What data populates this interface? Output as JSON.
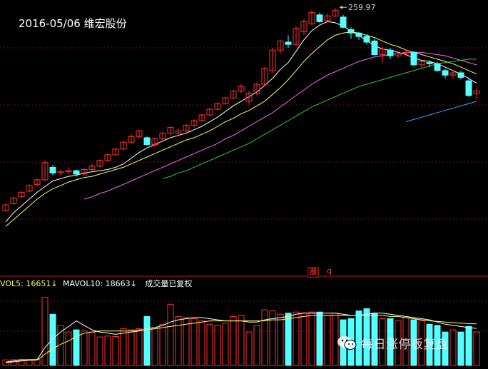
{
  "header": {
    "title": "2016-05/06 维宏股份"
  },
  "colors": {
    "up": "#ff3030",
    "down": "#54ffff",
    "grid": "#7a1010",
    "ma5": "#ffffff",
    "ma10": "#ffff66",
    "ma20": "#ff66ff",
    "ma30": "#33cc33",
    "ma60": "#33aaff"
  },
  "chart_data": {
    "type": "candlestick",
    "title": "2016-05/06 维宏股份",
    "max_price_label": "259.97",
    "price_range": [
      60,
      262
    ],
    "candles": [
      [
        82,
        88,
        81,
        87
      ],
      [
        88,
        94,
        87,
        93
      ],
      [
        94,
        99,
        93,
        98
      ],
      [
        99,
        105,
        98,
        104
      ],
      [
        105,
        110,
        103,
        109
      ],
      [
        109,
        126,
        108,
        124
      ],
      [
        120,
        122,
        113,
        115
      ],
      [
        115,
        118,
        113,
        116
      ],
      [
        116,
        120,
        114,
        117
      ],
      [
        117,
        118,
        112,
        114
      ],
      [
        114,
        119,
        113,
        118
      ],
      [
        118,
        123,
        116,
        121
      ],
      [
        121,
        127,
        120,
        126
      ],
      [
        126,
        132,
        125,
        131
      ],
      [
        131,
        137,
        130,
        136
      ],
      [
        136,
        143,
        135,
        142
      ],
      [
        142,
        149,
        141,
        147
      ],
      [
        147,
        153,
        145,
        152
      ],
      [
        146,
        147,
        139,
        140
      ],
      [
        140,
        146,
        138,
        145
      ],
      [
        145,
        151,
        144,
        150
      ],
      [
        150,
        156,
        148,
        155
      ],
      [
        150,
        154,
        147,
        152
      ],
      [
        152,
        158,
        151,
        157
      ],
      [
        157,
        162,
        155,
        161
      ],
      [
        161,
        167,
        160,
        166
      ],
      [
        166,
        172,
        165,
        171
      ],
      [
        171,
        177,
        170,
        176
      ],
      [
        176,
        182,
        175,
        181
      ],
      [
        181,
        188,
        180,
        187
      ],
      [
        187,
        193,
        185,
        191
      ],
      [
        178,
        187,
        175,
        185
      ],
      [
        185,
        194,
        183,
        193
      ],
      [
        193,
        208,
        192,
        207
      ],
      [
        205,
        225,
        203,
        223
      ],
      [
        223,
        232,
        220,
        231
      ],
      [
        230,
        236,
        225,
        228
      ],
      [
        228,
        244,
        227,
        242
      ],
      [
        239,
        250,
        236,
        248
      ],
      [
        246,
        258,
        245,
        256
      ],
      [
        254,
        256,
        247,
        248
      ],
      [
        249,
        255,
        248,
        253
      ],
      [
        253,
        260,
        252,
        258
      ],
      [
        252,
        254,
        242,
        243
      ],
      [
        241,
        243,
        233,
        238
      ],
      [
        238,
        239,
        232,
        235
      ],
      [
        235,
        237,
        228,
        230
      ],
      [
        231,
        233,
        218,
        219
      ],
      [
        219,
        226,
        212,
        224
      ],
      [
        223,
        225,
        215,
        218
      ],
      [
        218,
        222,
        216,
        220
      ],
      [
        220,
        223,
        217,
        221
      ],
      [
        221,
        222,
        209,
        210
      ],
      [
        210,
        214,
        206,
        213
      ],
      [
        212,
        214,
        208,
        211
      ],
      [
        211,
        213,
        204,
        205
      ],
      [
        205,
        207,
        198,
        201
      ],
      [
        201,
        204,
        198,
        203
      ],
      [
        203,
        205,
        197,
        199
      ],
      [
        196,
        199,
        182,
        183
      ],
      [
        185,
        190,
        180,
        187
      ]
    ],
    "ma_series": [
      {
        "name": "MA5",
        "start": 0,
        "values": [
          72,
          80,
          86,
          92,
          98,
          103,
          108,
          110,
          112,
          113,
          115,
          116,
          117,
          118,
          120,
          123,
          128,
          133,
          137,
          140,
          143,
          146,
          148,
          150,
          153,
          156,
          160,
          164,
          169,
          174,
          178,
          182,
          186,
          192,
          198,
          206,
          212,
          222,
          232,
          240,
          245,
          248,
          247,
          244,
          240,
          236,
          231,
          227,
          224,
          223,
          221,
          219,
          216,
          214,
          213,
          211,
          208,
          205,
          202,
          198,
          194
        ]
      },
      {
        "name": "MA10",
        "start": 0,
        "values": [
          68,
          74,
          80,
          86,
          92,
          97,
          101,
          104,
          107,
          109,
          111,
          112,
          114,
          116,
          118,
          120,
          123,
          126,
          129,
          132,
          135,
          138,
          141,
          144,
          146,
          149,
          152,
          156,
          160,
          163,
          167,
          170,
          174,
          178,
          184,
          190,
          197,
          205,
          213,
          220,
          226,
          232,
          236,
          238,
          239,
          238,
          236,
          234,
          231,
          228,
          226,
          223,
          221,
          219,
          217,
          215,
          213,
          211,
          208,
          205,
          202
        ]
      },
      {
        "name": "MA20",
        "start": 10,
        "values": [
          92,
          94,
          97,
          99,
          102,
          105,
          108,
          111,
          114,
          117,
          120,
          123,
          126,
          129,
          132,
          135,
          138,
          141,
          145,
          148,
          152,
          156,
          160,
          164,
          168,
          173,
          178,
          183,
          188,
          193,
          197,
          201,
          204,
          207,
          210,
          213,
          215,
          217,
          218,
          219,
          220,
          221,
          221,
          221,
          220,
          219,
          218,
          216,
          214,
          212,
          210
        ]
      },
      {
        "name": "MA30",
        "start": 20,
        "values": [
          110,
          112,
          115,
          117,
          120,
          123,
          126,
          129,
          132,
          135,
          138,
          141,
          145,
          149,
          153,
          157,
          161,
          165,
          169,
          173,
          176,
          179,
          182,
          185,
          188,
          191,
          193,
          195,
          197,
          199,
          201,
          203,
          205,
          207,
          209,
          211,
          212,
          213,
          214,
          215,
          215
        ]
      },
      {
        "name": "MA60",
        "start": 51,
        "values": [
          160,
          162,
          164,
          166,
          168,
          170,
          172,
          174,
          176,
          178
        ]
      }
    ],
    "volume": {
      "legend": {
        "mavol5_label": "VOL5: 16651",
        "mavol10_label": "MAVOL10: 18663",
        "note": "成交量已复权"
      },
      "range": [
        0,
        34000
      ],
      "values": [
        2500,
        2600,
        2700,
        2600,
        2700,
        30500,
        23000,
        18000,
        15000,
        16000,
        15500,
        15000,
        12800,
        13200,
        13000,
        16500,
        16000,
        16500,
        22000,
        17000,
        18500,
        27500,
        22000,
        21500,
        21000,
        20000,
        18500,
        18000,
        19000,
        22000,
        22500,
        15000,
        18000,
        25000,
        24500,
        23000,
        23500,
        24000,
        23500,
        24000,
        24000,
        22500,
        23500,
        20500,
        21000,
        24500,
        25500,
        23500,
        21000,
        21000,
        20000,
        21500,
        20500,
        20000,
        18500,
        18000,
        15000,
        16000,
        15000,
        17500,
        15000
      ],
      "mavol5": [
        1500,
        2000,
        2500,
        2600,
        2600,
        8000,
        12000,
        15000,
        17500,
        20000,
        18000,
        16000,
        15000,
        14500,
        14000,
        14500,
        15000,
        15500,
        16500,
        17000,
        18000,
        19500,
        20500,
        21000,
        21500,
        21500,
        21000,
        20500,
        20000,
        20000,
        20000,
        19500,
        19500,
        20500,
        21000,
        21500,
        22000,
        23000,
        23500,
        23500,
        23500,
        23500,
        23500,
        23000,
        22500,
        22500,
        23000,
        23500,
        23500,
        23000,
        22500,
        22000,
        21500,
        21000,
        20500,
        19500,
        18500,
        18000,
        17500,
        17000,
        16651
      ],
      "mavol10": [
        1200,
        1600,
        2000,
        2300,
        2400,
        5000,
        7500,
        9500,
        11000,
        13000,
        14500,
        15000,
        15500,
        15500,
        15500,
        15500,
        15500,
        16000,
        16000,
        16500,
        17000,
        17500,
        18000,
        18500,
        19000,
        19500,
        20000,
        20000,
        20000,
        20000,
        20000,
        20000,
        20000,
        20000,
        20500,
        20500,
        21000,
        21500,
        22000,
        22500,
        22500,
        22500,
        22500,
        22500,
        22500,
        22500,
        22500,
        22500,
        22500,
        22000,
        22000,
        21500,
        21000,
        20500,
        20000,
        19800,
        19500,
        19200,
        19000,
        18800,
        18663
      ]
    }
  },
  "badges": {
    "zhang": "涨",
    "q": "q"
  },
  "watermark": {
    "text": "每日涨停板复盘",
    "icon": "wechat-icon"
  }
}
